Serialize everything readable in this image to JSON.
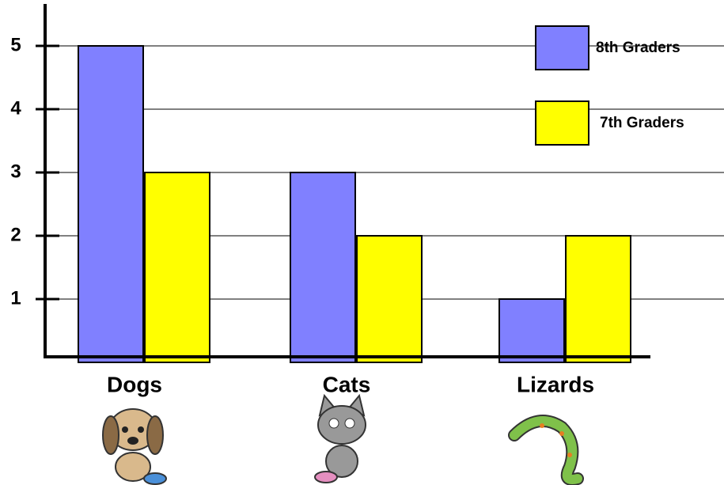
{
  "chart_data": {
    "type": "bar",
    "categories": [
      "Dogs",
      "Cats",
      "Lizards"
    ],
    "series": [
      {
        "name": "8th Graders",
        "color": "#8080ff",
        "values": [
          5,
          3,
          1
        ]
      },
      {
        "name": "7th Graders",
        "color": "#ffff00",
        "values": [
          3,
          2,
          2
        ]
      }
    ],
    "ylim": [
      0,
      5.7
    ],
    "yticks": [
      1,
      2,
      3,
      4,
      5
    ],
    "grid": true,
    "legend": "top-right"
  }
}
